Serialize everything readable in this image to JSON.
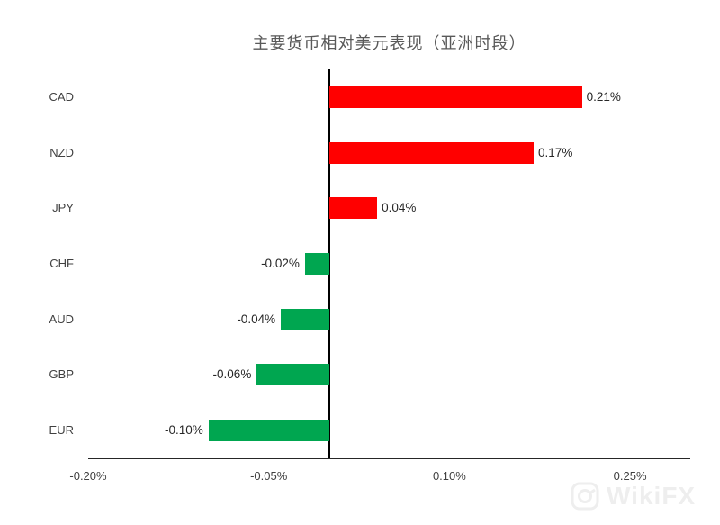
{
  "title": "主要货币相对美元表现（亚洲时段）",
  "watermark": {
    "text": "WikiFX",
    "logo": "wikifx-camera-logo"
  },
  "colors": {
    "positive_bar": "#ff0000",
    "negative_bar": "#00a650",
    "axis_line": "#000000",
    "category_text": "#404040",
    "value_text": "#262626",
    "tick_text": "#404040",
    "title_text": "#595959",
    "watermark_text": "#eeeeee",
    "background": "#ffffff"
  },
  "chart_data": {
    "type": "bar",
    "orientation": "horizontal",
    "title": "主要货币相对美元表现（亚洲时段）",
    "xlabel": "",
    "ylabel": "",
    "categories": [
      "CAD",
      "NZD",
      "JPY",
      "CHF",
      "AUD",
      "GBP",
      "EUR"
    ],
    "values": [
      0.21,
      0.17,
      0.04,
      -0.02,
      -0.04,
      -0.06,
      -0.1
    ],
    "value_labels": [
      "0.21%",
      "0.17%",
      "0.04%",
      "-0.02%",
      "-0.04%",
      "-0.06%",
      "-0.10%"
    ],
    "xlim": [
      -0.2,
      0.3
    ],
    "xticks": [
      -0.2,
      -0.05,
      0.1,
      0.25
    ],
    "xtick_labels": [
      "-0.20%",
      "-0.05%",
      "0.10%",
      "0.25%"
    ],
    "grid": false,
    "legend": false,
    "positive_color": "#ff0000",
    "negative_color": "#00a650",
    "unit": "percent"
  }
}
